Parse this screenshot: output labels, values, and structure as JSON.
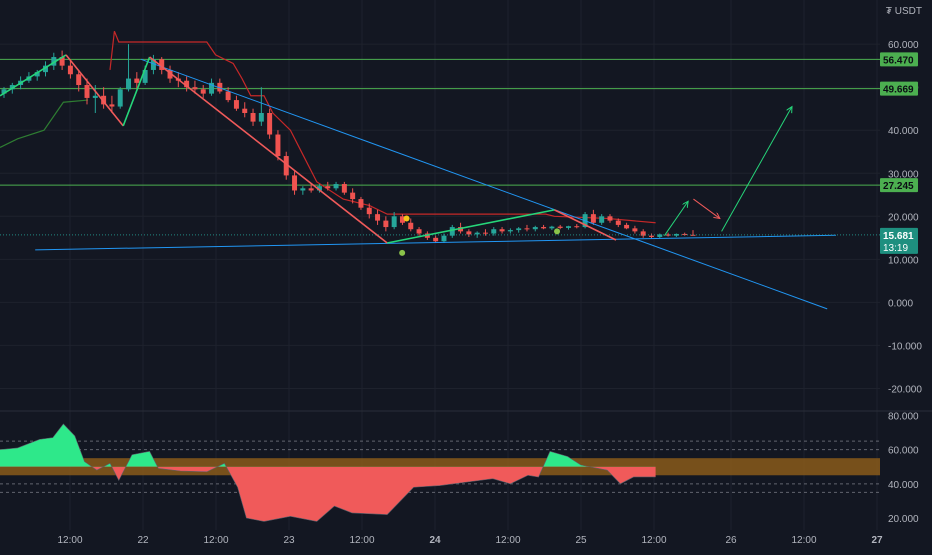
{
  "unit_label": "₮ USDT",
  "colors": {
    "background": "#131722",
    "grid": "#1e222d",
    "up": "#26a69a",
    "down": "#ef5350",
    "level_line": "#4caf50",
    "level_tag": "#4caf50",
    "price_tag": "#1e8f7f",
    "trendline": "#2196f3",
    "zigzag_up": "#26d67a",
    "zigzag_down": "#f05a5a",
    "upper_band": "#c62828",
    "lower_band": "#2e7d32",
    "osc_pos": "#2ee88a",
    "osc_neg": "#f05a5a",
    "osc_band": "#8a5a1a",
    "axis_text": "#b2b5be"
  },
  "chart_data": [
    {
      "type": "candlestick",
      "title": "",
      "ylabel": "",
      "ylim": [
        -25,
        67
      ],
      "x_ticks": [
        "12:00",
        "22",
        "12:00",
        "23",
        "12:00",
        "24",
        "12:00",
        "25",
        "12:00",
        "26",
        "12:00",
        "27"
      ],
      "y_ticks": [
        "60.000",
        "50.000",
        "40.000",
        "30.000",
        "20.000",
        "10.000",
        "0.000",
        "-10.000",
        "-20.000"
      ],
      "horizontal_levels": [
        {
          "label": "56.470",
          "value": 56.47
        },
        {
          "label": "49.669",
          "value": 49.669
        },
        {
          "label": "27.245",
          "value": 27.245
        }
      ],
      "last_price": {
        "label": "15.681",
        "countdown": "13:19",
        "value": 15.681
      },
      "grid": true,
      "candles": [
        [
          48.5,
          50.0,
          47.5,
          49.5
        ],
        [
          49.5,
          51.0,
          48.5,
          50.5
        ],
        [
          50.5,
          52.5,
          49.5,
          51.5
        ],
        [
          51.5,
          53.5,
          51.0,
          52.5
        ],
        [
          52.5,
          54.0,
          51.5,
          53.5
        ],
        [
          53.5,
          56.0,
          52.5,
          55.0
        ],
        [
          55.0,
          58.0,
          54.0,
          57.0
        ],
        [
          57.0,
          58.5,
          54.0,
          55.0
        ],
        [
          55.0,
          56.5,
          52.0,
          53.0
        ],
        [
          53.0,
          54.0,
          49.0,
          50.5
        ],
        [
          50.5,
          52.0,
          46.0,
          47.5
        ],
        [
          47.5,
          50.5,
          44.0,
          48.0
        ],
        [
          48.0,
          50.0,
          45.0,
          46.0
        ],
        [
          46.0,
          48.0,
          44.0,
          45.5
        ],
        [
          45.5,
          50.0,
          45.0,
          49.5
        ],
        [
          49.5,
          60.0,
          49.0,
          52.0
        ],
        [
          52.0,
          53.5,
          49.5,
          51.0
        ],
        [
          51.0,
          55.0,
          50.5,
          54.0
        ],
        [
          54.0,
          57.5,
          53.0,
          56.5
        ],
        [
          56.5,
          57.0,
          53.0,
          54.0
        ],
        [
          54.0,
          55.0,
          51.0,
          52.0
        ],
        [
          52.0,
          53.5,
          50.0,
          51.5
        ],
        [
          51.5,
          52.5,
          49.0,
          50.0
        ],
        [
          50.0,
          51.5,
          48.5,
          49.5
        ],
        [
          49.5,
          50.5,
          47.5,
          48.5
        ],
        [
          48.5,
          52.0,
          48.0,
          51.0
        ],
        [
          51.0,
          52.0,
          48.5,
          49.0
        ],
        [
          49.0,
          50.0,
          46.5,
          47.0
        ],
        [
          47.0,
          48.0,
          44.5,
          45.0
        ],
        [
          45.0,
          46.5,
          43.0,
          44.0
        ],
        [
          44.0,
          45.0,
          41.0,
          42.0
        ],
        [
          42.0,
          50.0,
          41.0,
          44.0
        ],
        [
          44.0,
          45.0,
          38.0,
          39.0
        ],
        [
          39.0,
          40.0,
          33.0,
          34.0
        ],
        [
          34.0,
          35.0,
          28.5,
          29.5
        ],
        [
          29.5,
          30.5,
          25.0,
          26.0
        ],
        [
          26.0,
          27.0,
          25.0,
          26.5
        ],
        [
          26.5,
          27.5,
          25.5,
          26.0
        ],
        [
          26.0,
          27.5,
          25.5,
          27.0
        ],
        [
          27.0,
          28.0,
          26.0,
          26.5
        ],
        [
          26.5,
          28.0,
          26.0,
          27.5
        ],
        [
          27.5,
          28.0,
          25.0,
          25.5
        ],
        [
          25.5,
          26.5,
          23.0,
          24.0
        ],
        [
          24.0,
          24.5,
          21.5,
          22.0
        ],
        [
          22.0,
          23.0,
          19.5,
          20.5
        ],
        [
          20.5,
          21.5,
          18.0,
          19.0
        ],
        [
          19.0,
          20.0,
          16.5,
          17.5
        ],
        [
          17.5,
          21.0,
          17.0,
          20.0
        ],
        [
          20.0,
          20.5,
          18.0,
          18.5
        ],
        [
          18.5,
          19.5,
          16.5,
          17.0
        ],
        [
          17.0,
          17.5,
          15.5,
          16.0
        ],
        [
          16.0,
          16.5,
          14.5,
          15.0
        ],
        [
          15.0,
          15.5,
          13.8,
          14.2
        ],
        [
          14.2,
          16.0,
          13.8,
          15.5
        ],
        [
          15.5,
          18.0,
          15.0,
          17.5
        ],
        [
          17.5,
          18.5,
          16.0,
          16.5
        ],
        [
          16.5,
          17.0,
          15.2,
          15.8
        ],
        [
          15.8,
          16.5,
          15.0,
          16.2
        ],
        [
          16.2,
          17.0,
          15.5,
          16.0
        ],
        [
          16.0,
          17.5,
          15.5,
          17.0
        ],
        [
          17.0,
          17.5,
          16.0,
          16.5
        ],
        [
          16.5,
          17.2,
          16.0,
          16.8
        ],
        [
          16.8,
          17.5,
          16.2,
          17.2
        ],
        [
          17.2,
          18.0,
          16.5,
          17.0
        ],
        [
          17.0,
          17.8,
          16.5,
          17.5
        ],
        [
          17.5,
          18.0,
          17.0,
          17.2
        ],
        [
          17.2,
          17.8,
          16.8,
          17.6
        ],
        [
          17.6,
          18.0,
          17.0,
          17.3
        ],
        [
          17.3,
          17.8,
          16.9,
          17.7
        ],
        [
          17.7,
          18.2,
          17.2,
          17.5
        ],
        [
          17.5,
          21.0,
          17.2,
          20.5
        ],
        [
          20.5,
          21.5,
          18.0,
          18.5
        ],
        [
          18.5,
          20.5,
          18.0,
          20.0
        ],
        [
          20.0,
          20.5,
          18.5,
          19.0
        ],
        [
          19.0,
          19.5,
          17.5,
          18.0
        ],
        [
          18.0,
          18.5,
          17.0,
          17.2
        ],
        [
          17.2,
          17.8,
          16.0,
          16.5
        ],
        [
          16.5,
          17.0,
          15.0,
          15.5
        ],
        [
          15.5,
          16.0,
          14.8,
          15.2
        ],
        [
          15.2,
          16.0,
          14.9,
          15.8
        ],
        [
          15.8,
          16.2,
          15.3,
          15.5
        ],
        [
          15.5,
          16.0,
          15.2,
          15.9
        ],
        [
          15.9,
          16.2,
          15.5,
          15.7
        ],
        [
          15.7,
          16.8,
          15.5,
          15.681
        ]
      ],
      "trendlines": [
        {
          "name": "descending",
          "from": [
            0.16,
            56.5
          ],
          "to": [
            0.94,
            -1.5
          ]
        },
        {
          "name": "ascending-support",
          "from": [
            0.04,
            12.2
          ],
          "to": [
            0.95,
            15.6
          ]
        }
      ],
      "zigzag": [
        {
          "x": 0.0,
          "y": 48.0
        },
        {
          "x": 0.075,
          "y": 57.5
        },
        {
          "x": 0.14,
          "y": 41.0
        },
        {
          "x": 0.17,
          "y": 57.0
        },
        {
          "x": 0.44,
          "y": 13.8
        },
        {
          "x": 0.63,
          "y": 21.5
        },
        {
          "x": 0.7,
          "y": 14.5
        }
      ],
      "markers": [
        {
          "x": 0.462,
          "y": 19.5,
          "color": "#f5c518"
        },
        {
          "x": 0.457,
          "y": 11.5,
          "color": "#8bc34a"
        },
        {
          "x": 0.633,
          "y": 16.5,
          "color": "#8bc34a"
        }
      ],
      "projection_arrows": [
        {
          "from": [
            0.755,
            15.5
          ],
          "to": [
            0.782,
            23.5
          ],
          "color": "#26d67a"
        },
        {
          "from": [
            0.788,
            24.0
          ],
          "to": [
            0.818,
            19.5
          ],
          "color": "#f05a5a"
        },
        {
          "from": [
            0.82,
            16.5
          ],
          "to": [
            0.9,
            45.5
          ],
          "color": "#26d67a"
        }
      ],
      "upper_band": [
        [
          0.125,
          54.0
        ],
        [
          0.13,
          63.0
        ],
        [
          0.135,
          60.5
        ],
        [
          0.235,
          60.5
        ],
        [
          0.245,
          57.5
        ],
        [
          0.265,
          55.5
        ],
        [
          0.275,
          52.0
        ],
        [
          0.285,
          48.0
        ],
        [
          0.3,
          48.0
        ],
        [
          0.31,
          44.0
        ],
        [
          0.33,
          40.0
        ],
        [
          0.345,
          34.0
        ],
        [
          0.36,
          28.0
        ],
        [
          0.39,
          24.0
        ],
        [
          0.42,
          22.5
        ],
        [
          0.44,
          20.5
        ],
        [
          0.62,
          20.5
        ],
        [
          0.63,
          20.0
        ],
        [
          0.69,
          19.5
        ],
        [
          0.745,
          18.5
        ]
      ],
      "lower_band": [
        [
          0.0,
          36.0
        ],
        [
          0.02,
          38.0
        ],
        [
          0.05,
          40.0
        ],
        [
          0.072,
          46.5
        ],
        [
          0.1,
          47.0
        ]
      ]
    },
    {
      "type": "area",
      "title": "",
      "ylim": [
        13,
        82
      ],
      "y_ticks": [
        "80.000",
        "60.000",
        "40.000",
        "20.000"
      ],
      "threshold": 50,
      "band": [
        45,
        55
      ],
      "reference_lines": [
        35,
        40,
        60,
        65
      ],
      "series": [
        {
          "x": 0.0,
          "y": 60.0
        },
        {
          "x": 0.02,
          "y": 61.0
        },
        {
          "x": 0.045,
          "y": 66.0
        },
        {
          "x": 0.06,
          "y": 67.0
        },
        {
          "x": 0.072,
          "y": 75.0
        },
        {
          "x": 0.085,
          "y": 68.0
        },
        {
          "x": 0.096,
          "y": 53.0
        },
        {
          "x": 0.11,
          "y": 48.0
        },
        {
          "x": 0.125,
          "y": 52.0
        },
        {
          "x": 0.135,
          "y": 42.0
        },
        {
          "x": 0.15,
          "y": 57.0
        },
        {
          "x": 0.17,
          "y": 59.0
        },
        {
          "x": 0.18,
          "y": 49.0
        },
        {
          "x": 0.205,
          "y": 47.5
        },
        {
          "x": 0.235,
          "y": 47.0
        },
        {
          "x": 0.255,
          "y": 52.0
        },
        {
          "x": 0.27,
          "y": 38.0
        },
        {
          "x": 0.28,
          "y": 20.0
        },
        {
          "x": 0.3,
          "y": 18.0
        },
        {
          "x": 0.33,
          "y": 21.0
        },
        {
          "x": 0.36,
          "y": 18.0
        },
        {
          "x": 0.38,
          "y": 27.0
        },
        {
          "x": 0.4,
          "y": 23.0
        },
        {
          "x": 0.44,
          "y": 22.0
        },
        {
          "x": 0.47,
          "y": 38.0
        },
        {
          "x": 0.5,
          "y": 39.0
        },
        {
          "x": 0.53,
          "y": 41.0
        },
        {
          "x": 0.56,
          "y": 43.0
        },
        {
          "x": 0.58,
          "y": 40.0
        },
        {
          "x": 0.6,
          "y": 45.0
        },
        {
          "x": 0.612,
          "y": 44.0
        },
        {
          "x": 0.625,
          "y": 59.0
        },
        {
          "x": 0.645,
          "y": 56.0
        },
        {
          "x": 0.66,
          "y": 51.0
        },
        {
          "x": 0.69,
          "y": 48.0
        },
        {
          "x": 0.705,
          "y": 40.0
        },
        {
          "x": 0.72,
          "y": 44.0
        },
        {
          "x": 0.745,
          "y": 44.0
        }
      ]
    }
  ]
}
